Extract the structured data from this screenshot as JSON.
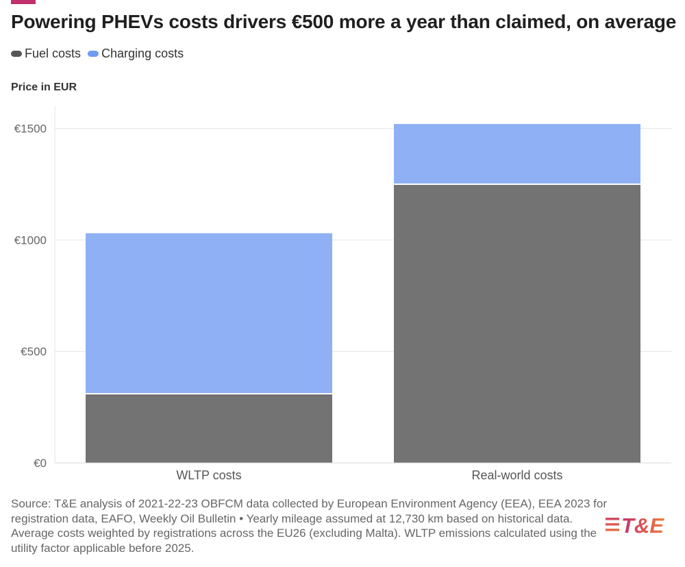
{
  "title": "Powering PHEVs costs drivers €500 more a year than claimed, on average",
  "legend": [
    {
      "label": "Fuel costs",
      "color": "#6e6e6e"
    },
    {
      "label": "Charging costs",
      "color": "#8fb0f5"
    }
  ],
  "colors": {
    "accent": "#c0306a",
    "fuel": "#737373",
    "charging": "#8fb0f5",
    "grid": "#e4e4e4"
  },
  "chart_data": {
    "type": "bar",
    "stacked": true,
    "title": "Powering PHEVs costs drivers €500 more a year than claimed, on average",
    "ylabel": "Price in EUR",
    "xlabel": "",
    "categories": [
      "WLTP costs",
      "Real-world costs"
    ],
    "series": [
      {
        "name": "Fuel costs",
        "values": [
          310,
          1250
        ]
      },
      {
        "name": "Charging costs",
        "values": [
          720,
          270
        ]
      }
    ],
    "ylim": [
      0,
      1600
    ],
    "yticks": [
      0,
      500,
      1000,
      1500
    ],
    "ytick_labels": [
      "€0",
      "€500",
      "€1000",
      "€1500"
    ],
    "grid": true,
    "legend_position": "top-left"
  },
  "source": "Source: T&E analysis of 2021-22-23 OBFCM data collected by European Environment Agency (EEA), EEA 2023 for registration data, EAFO, Weekly Oil Bulletin • Yearly mileage assumed at 12,730 km based on historical data. Average costs weighted by registrations across the EU26 (excluding Malta). WLTP emissions calculated using the utility factor applicable before 2025.",
  "logo": {
    "text": "T&E"
  }
}
